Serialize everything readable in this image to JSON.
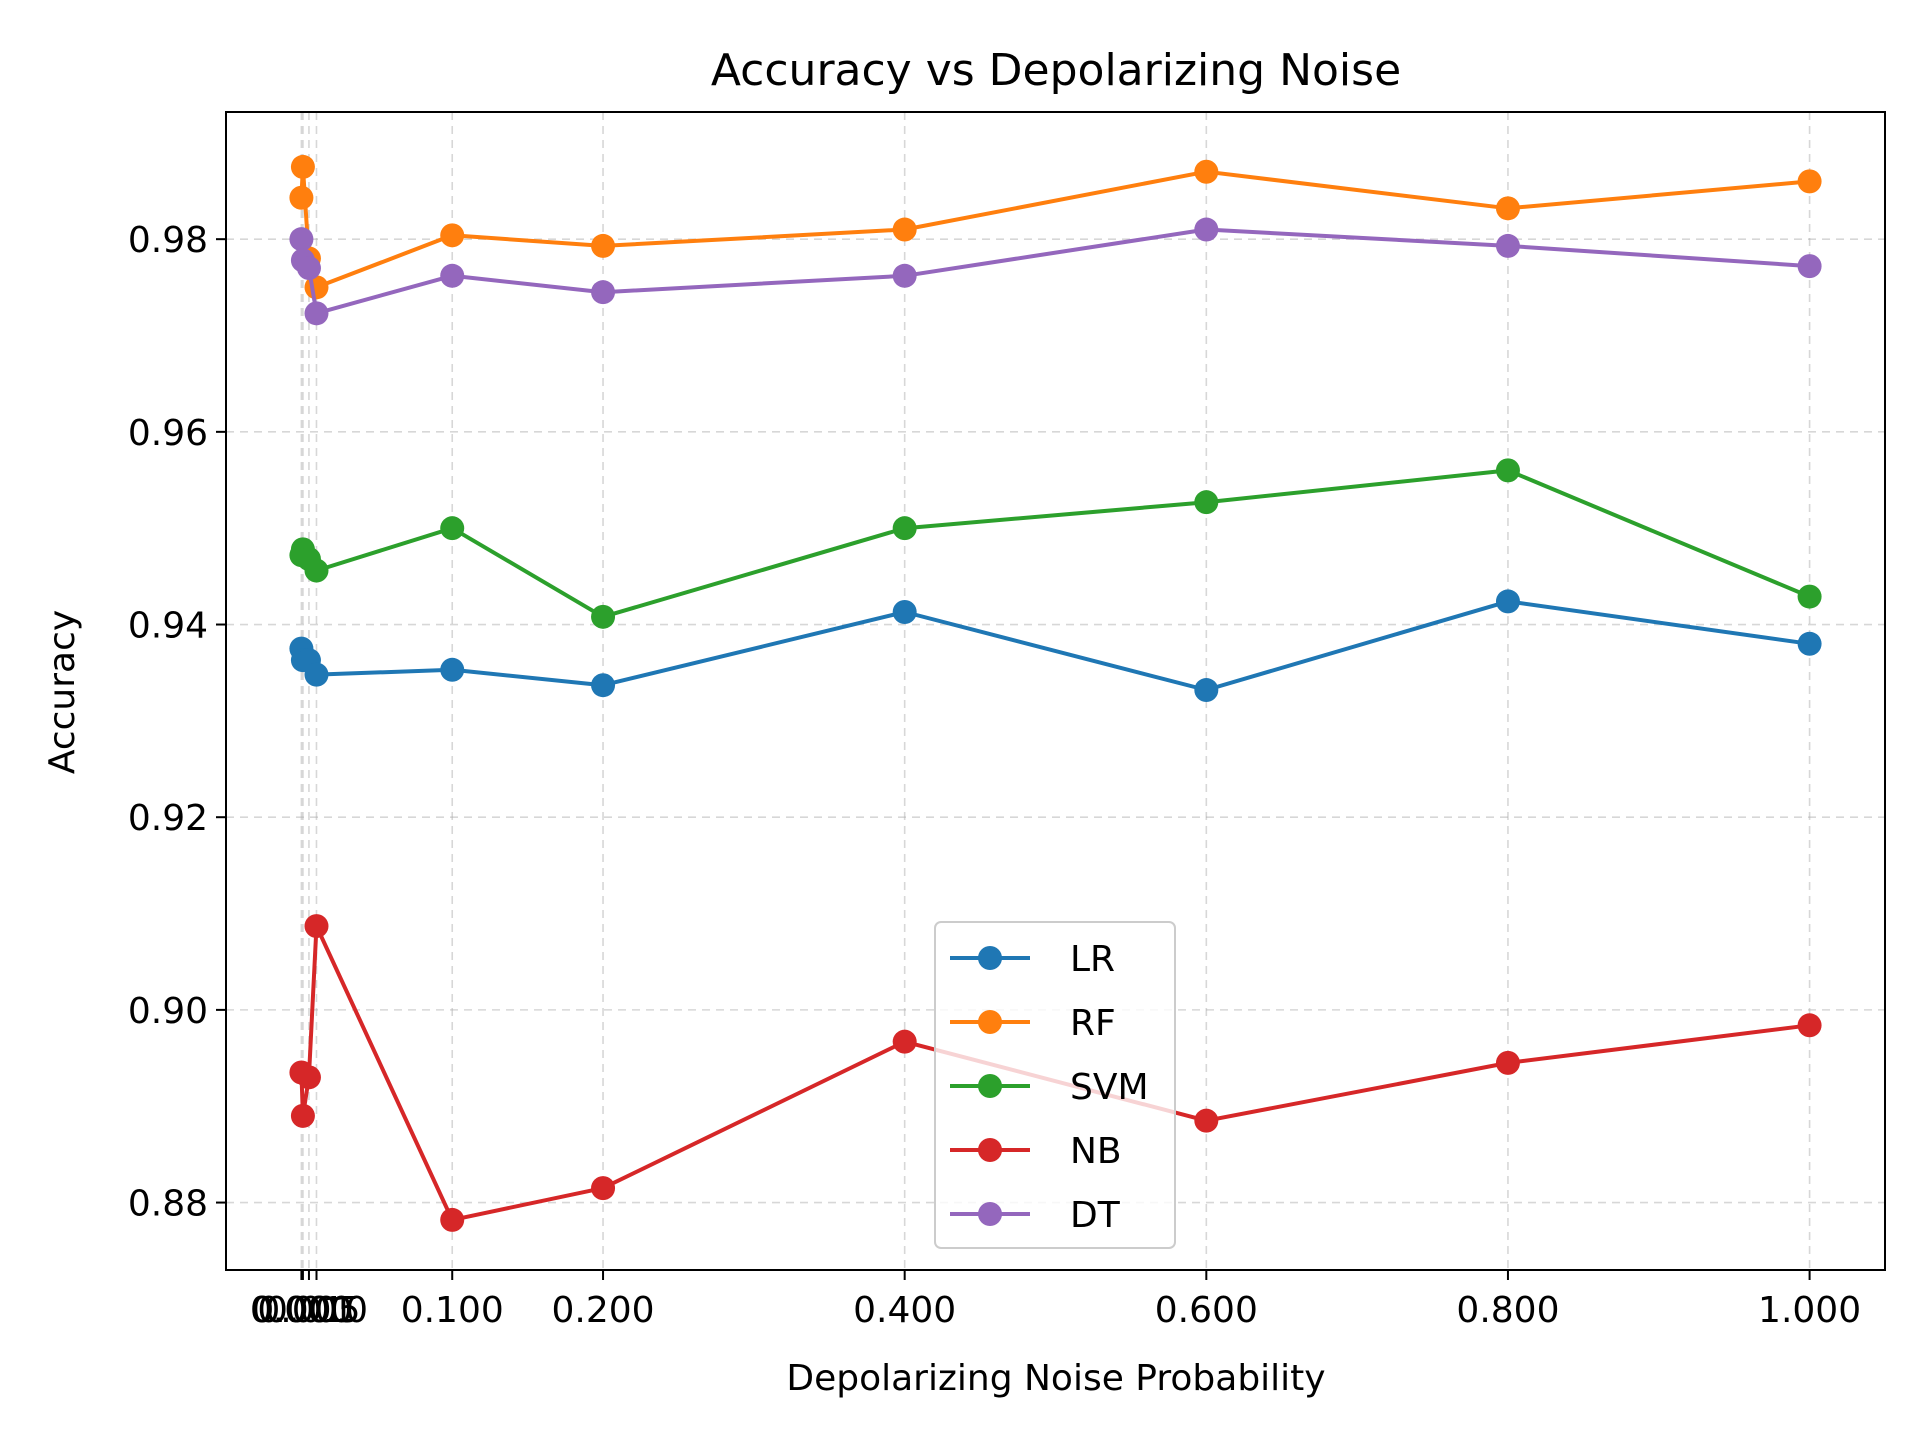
{
  "chart_data": {
    "type": "line",
    "title": "Accuracy vs Depolarizing Noise",
    "xlabel": "Depolarizing Noise Probability",
    "ylabel": "Accuracy",
    "xlim": [
      -0.05,
      1.05
    ],
    "ylim": [
      0.873,
      0.9932
    ],
    "x": [
      0.0,
      0.001,
      0.005,
      0.01,
      0.1,
      0.2,
      0.4,
      0.6,
      0.8,
      1.0
    ],
    "xticks": [
      0.0,
      0.001,
      0.005,
      0.01,
      0.1,
      0.2,
      0.4,
      0.6,
      0.8,
      1.0
    ],
    "xtick_labels": [
      "0.000",
      "0.001",
      "0.005",
      "0.010",
      "0.100",
      "0.200",
      "0.400",
      "0.600",
      "0.800",
      "1.000"
    ],
    "yticks": [
      0.88,
      0.9,
      0.92,
      0.94,
      0.96,
      0.98
    ],
    "ytick_labels": [
      "0.88",
      "0.90",
      "0.92",
      "0.94",
      "0.96",
      "0.98"
    ],
    "grid": true,
    "legend_position": "lower-center",
    "series": [
      {
        "name": "LR",
        "color": "#1f77b4",
        "values": [
          0.9375,
          0.9363,
          0.9363,
          0.9348,
          0.9353,
          0.9337,
          0.9413,
          0.9332,
          0.9424,
          0.938
        ]
      },
      {
        "name": "RF",
        "color": "#ff7f0e",
        "values": [
          0.9843,
          0.9875,
          0.978,
          0.975,
          0.9804,
          0.9793,
          0.981,
          0.987,
          0.9832,
          0.986
        ]
      },
      {
        "name": "SVM",
        "color": "#2ca02c",
        "values": [
          0.9472,
          0.9478,
          0.9468,
          0.9456,
          0.95,
          0.9408,
          0.95,
          0.9527,
          0.956,
          0.9429
        ]
      },
      {
        "name": "NB",
        "color": "#d62728",
        "values": [
          0.8935,
          0.889,
          0.893,
          0.9087,
          0.8782,
          0.8815,
          0.8967,
          0.8885,
          0.8945,
          0.8984
        ]
      },
      {
        "name": "DT",
        "color": "#9467bd",
        "values": [
          0.98,
          0.9778,
          0.977,
          0.9723,
          0.9762,
          0.9745,
          0.9762,
          0.981,
          0.9793,
          0.9772
        ]
      }
    ]
  }
}
